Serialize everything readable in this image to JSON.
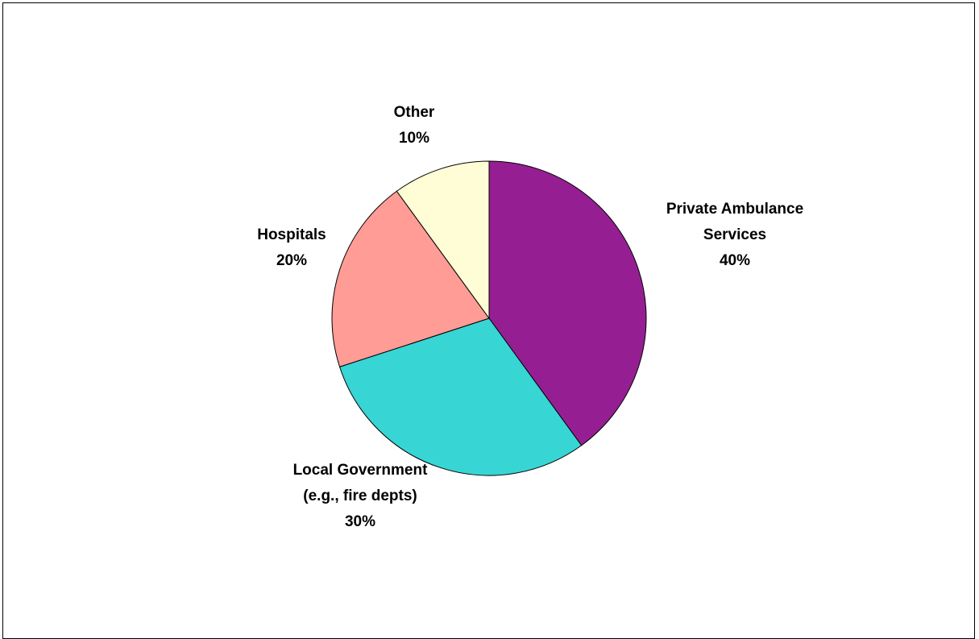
{
  "chart_data": {
    "type": "pie",
    "title": "",
    "start_angle_deg": 0,
    "direction": "clockwise",
    "slices": [
      {
        "name": "Private Ambulance Services",
        "label_lines": [
          "Private Ambulance",
          "Services"
        ],
        "value": 40,
        "pct_label": "40%",
        "color": "#951F92"
      },
      {
        "name": "Local Government (e.g., fire depts)",
        "label_lines": [
          "Local Government",
          "(e.g., fire depts)"
        ],
        "value": 30,
        "pct_label": "30%",
        "color": "#38D5D5"
      },
      {
        "name": "Hospitals",
        "label_lines": [
          "Hospitals"
        ],
        "value": 20,
        "pct_label": "20%",
        "color": "#FF9C96"
      },
      {
        "name": "Other",
        "label_lines": [
          "Other"
        ],
        "value": 10,
        "pct_label": "10%",
        "color": "#FFFDD6"
      }
    ]
  }
}
